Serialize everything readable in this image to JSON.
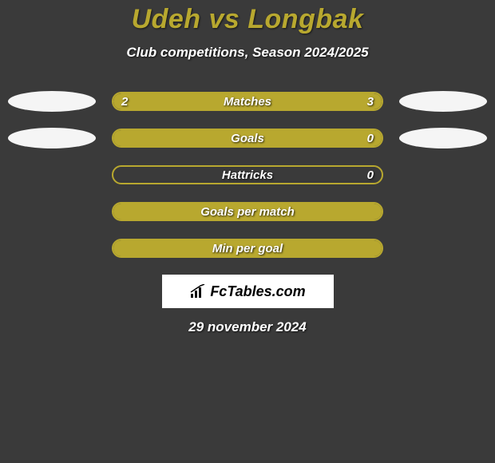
{
  "title": "Udeh vs Longbak",
  "subtitle": "Club competitions, Season 2024/2025",
  "rows": [
    {
      "label": "Matches",
      "left_val": "2",
      "right_val": "3",
      "left_pct": 40,
      "right_pct": 60,
      "show_ovals": true,
      "show_vals": true,
      "fill_mode": "split"
    },
    {
      "label": "Goals",
      "left_val": "",
      "right_val": "0",
      "left_pct": 100,
      "right_pct": 0,
      "show_ovals": true,
      "show_vals": true,
      "fill_mode": "full"
    },
    {
      "label": "Hattricks",
      "left_val": "",
      "right_val": "0",
      "left_pct": 0,
      "right_pct": 0,
      "show_ovals": false,
      "show_vals": true,
      "fill_mode": "none"
    },
    {
      "label": "Goals per match",
      "left_val": "",
      "right_val": "",
      "left_pct": 100,
      "right_pct": 0,
      "show_ovals": false,
      "show_vals": false,
      "fill_mode": "full"
    },
    {
      "label": "Min per goal",
      "left_val": "",
      "right_val": "",
      "left_pct": 100,
      "right_pct": 0,
      "show_ovals": false,
      "show_vals": false,
      "fill_mode": "full"
    }
  ],
  "logo_text": "FcTables.com",
  "date_text": "29 november 2024",
  "colors": {
    "accent": "#b8a82f",
    "bg": "#3a3a3a",
    "oval": "#f5f5f5",
    "text": "#ffffff"
  }
}
